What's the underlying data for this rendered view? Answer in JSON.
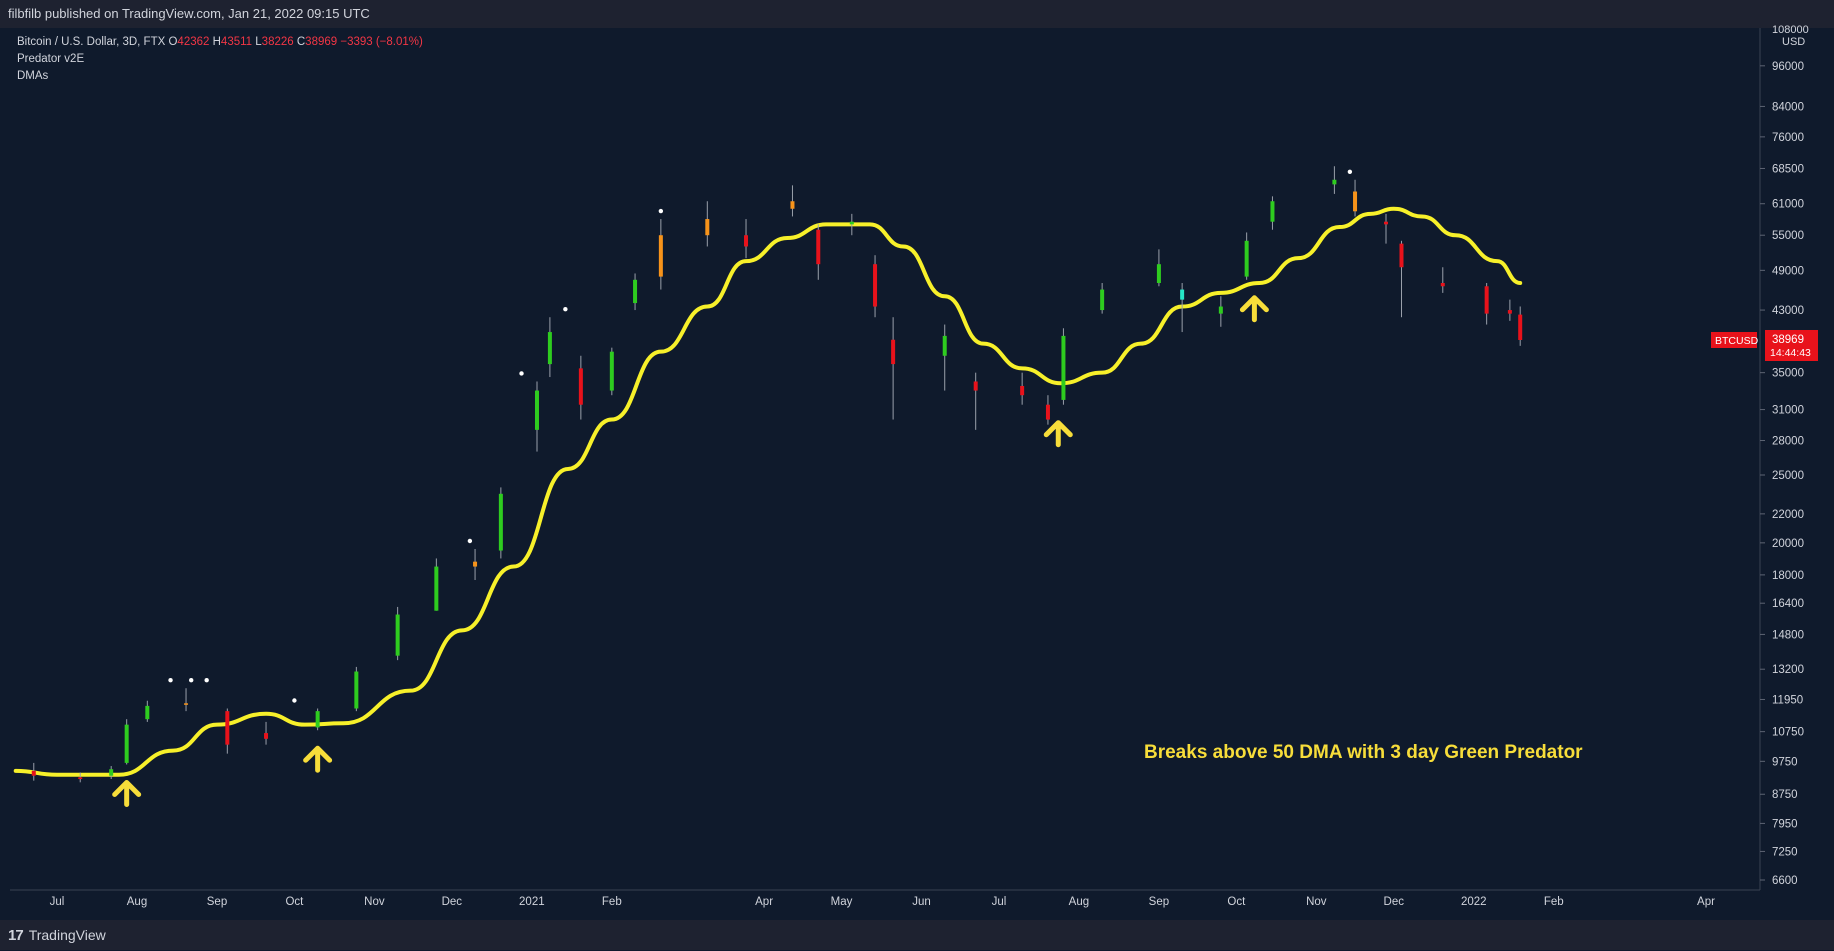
{
  "header": {
    "published_text": "filbfilb published on TradingView.com, Jan 21, 2022 09:15 UTC"
  },
  "legend": {
    "symbol_line": "Bitcoin / U.S. Dollar, 3D, FTX",
    "o_label": "O",
    "o_value": "42362",
    "h_label": "H",
    "h_value": "43511",
    "l_label": "L",
    "l_value": "38226",
    "c_label": "C",
    "c_value": "38969",
    "change": "−3393 (−8.01%)",
    "indicator_1": "Predator v2E",
    "indicator_2": "DMAs"
  },
  "annotation": "Breaks above 50 DMA with 3 day Green Predator",
  "price_scale": {
    "currency": "USD",
    "top_label": "108000",
    "ticks": [
      "96000",
      "84000",
      "76000",
      "68500",
      "61000",
      "55000",
      "49000",
      "43000",
      "35000",
      "31000",
      "28000",
      "25000",
      "22000",
      "20000",
      "18000",
      "16400",
      "14800",
      "13200",
      "11950",
      "10750",
      "9750",
      "8750",
      "7950",
      "7250",
      "6600"
    ]
  },
  "last_price": {
    "symbol": "BTCUSD",
    "price": "38969",
    "countdown": "14:44:43"
  },
  "time_axis": [
    "Jul",
    "Aug",
    "Sep",
    "Oct",
    "Nov",
    "Dec",
    "2021",
    "Feb",
    "Apr",
    "May",
    "Jun",
    "Jul",
    "Aug",
    "Sep",
    "Oct",
    "Nov",
    "Dec",
    "2022",
    "Feb",
    "Apr"
  ],
  "footer": {
    "brand": "TradingView",
    "logo_text": "17"
  },
  "colors": {
    "background": "#0f1a2c",
    "green": "#2ecc1f",
    "red": "#e8121b",
    "orange": "#f7931a",
    "cyan": "#26e6c8",
    "dma": "#f7f02a",
    "arrow": "#f7dd3a"
  },
  "chart_data": {
    "type": "candlestick",
    "scale": "log",
    "ylim": [
      6600,
      108000
    ],
    "series": [
      {
        "name": "BTCUSD",
        "kind": "candles",
        "points": [
          {
            "x": "2020-06-22",
            "o": 9300,
            "h": 9700,
            "l": 9150,
            "c": 9450,
            "color": "red"
          },
          {
            "x": "2020-07-10",
            "o": 9250,
            "h": 9400,
            "l": 9100,
            "c": 9200,
            "color": "red"
          },
          {
            "x": "2020-07-22",
            "o": 9300,
            "h": 9600,
            "l": 9200,
            "c": 9500,
            "color": "green"
          },
          {
            "x": "2020-07-28",
            "o": 9700,
            "h": 11200,
            "l": 9650,
            "c": 11000,
            "color": "green"
          },
          {
            "x": "2020-08-05",
            "o": 11200,
            "h": 11900,
            "l": 11100,
            "c": 11700,
            "color": "green"
          },
          {
            "x": "2020-08-20",
            "o": 11800,
            "h": 12400,
            "l": 11500,
            "c": 11750,
            "color": "orange"
          },
          {
            "x": "2020-09-05",
            "o": 11500,
            "h": 11600,
            "l": 10000,
            "c": 10300,
            "color": "red"
          },
          {
            "x": "2020-09-20",
            "o": 10500,
            "h": 11100,
            "l": 10300,
            "c": 10700,
            "color": "red"
          },
          {
            "x": "2020-10-10",
            "o": 10900,
            "h": 11600,
            "l": 10800,
            "c": 11500,
            "color": "green"
          },
          {
            "x": "2020-10-25",
            "o": 11600,
            "h": 13300,
            "l": 11500,
            "c": 13100,
            "color": "green"
          },
          {
            "x": "2020-11-10",
            "o": 13800,
            "h": 16200,
            "l": 13600,
            "c": 15800,
            "color": "green"
          },
          {
            "x": "2020-11-25",
            "o": 16000,
            "h": 19000,
            "l": 16000,
            "c": 18500,
            "color": "green"
          },
          {
            "x": "2020-12-10",
            "o": 18500,
            "h": 19600,
            "l": 17700,
            "c": 18800,
            "color": "orange"
          },
          {
            "x": "2020-12-20",
            "o": 19500,
            "h": 24000,
            "l": 19000,
            "c": 23500,
            "color": "green"
          },
          {
            "x": "2021-01-03",
            "o": 29000,
            "h": 34000,
            "l": 27000,
            "c": 33000,
            "color": "green"
          },
          {
            "x": "2021-01-08",
            "o": 36000,
            "h": 42000,
            "l": 34500,
            "c": 40000,
            "color": "green"
          },
          {
            "x": "2021-01-20",
            "o": 35500,
            "h": 37000,
            "l": 30000,
            "c": 31500,
            "color": "red"
          },
          {
            "x": "2021-02-01",
            "o": 33000,
            "h": 38000,
            "l": 32500,
            "c": 37500,
            "color": "green"
          },
          {
            "x": "2021-02-10",
            "o": 44000,
            "h": 48500,
            "l": 43000,
            "c": 47500,
            "color": "green"
          },
          {
            "x": "2021-02-20",
            "o": 55000,
            "h": 58000,
            "l": 46000,
            "c": 48000,
            "color": "orange"
          },
          {
            "x": "2021-03-10",
            "o": 55000,
            "h": 61500,
            "l": 53000,
            "c": 58000,
            "color": "orange"
          },
          {
            "x": "2021-03-25",
            "o": 55000,
            "h": 58000,
            "l": 51000,
            "c": 53000,
            "color": "red"
          },
          {
            "x": "2021-04-12",
            "o": 60000,
            "h": 64800,
            "l": 58500,
            "c": 61500,
            "color": "orange"
          },
          {
            "x": "2021-04-22",
            "o": 56000,
            "h": 57000,
            "l": 47500,
            "c": 50000,
            "color": "red"
          },
          {
            "x": "2021-05-05",
            "o": 57000,
            "h": 59000,
            "l": 55000,
            "c": 57500,
            "color": "green"
          },
          {
            "x": "2021-05-14",
            "o": 50000,
            "h": 51500,
            "l": 42000,
            "c": 43500,
            "color": "red"
          },
          {
            "x": "2021-05-21",
            "o": 39000,
            "h": 42000,
            "l": 30000,
            "c": 36000,
            "color": "red"
          },
          {
            "x": "2021-06-10",
            "o": 37000,
            "h": 41000,
            "l": 33000,
            "c": 39500,
            "color": "green"
          },
          {
            "x": "2021-06-22",
            "o": 34000,
            "h": 35000,
            "l": 29000,
            "c": 33000,
            "color": "red"
          },
          {
            "x": "2021-07-10",
            "o": 33500,
            "h": 35000,
            "l": 31500,
            "c": 32500,
            "color": "red"
          },
          {
            "x": "2021-07-20",
            "o": 31500,
            "h": 32500,
            "l": 29500,
            "c": 30000,
            "color": "red"
          },
          {
            "x": "2021-07-26",
            "o": 32000,
            "h": 40500,
            "l": 31500,
            "c": 39500,
            "color": "green"
          },
          {
            "x": "2021-08-10",
            "o": 43000,
            "h": 47000,
            "l": 42500,
            "c": 46000,
            "color": "green"
          },
          {
            "x": "2021-09-01",
            "o": 47000,
            "h": 52500,
            "l": 46500,
            "c": 50000,
            "color": "green"
          },
          {
            "x": "2021-09-10",
            "o": 46000,
            "h": 47000,
            "l": 40000,
            "c": 44500,
            "color": "cyan"
          },
          {
            "x": "2021-09-25",
            "o": 42500,
            "h": 45000,
            "l": 40700,
            "c": 43500,
            "color": "green"
          },
          {
            "x": "2021-10-05",
            "o": 48000,
            "h": 55500,
            "l": 47500,
            "c": 54000,
            "color": "green"
          },
          {
            "x": "2021-10-15",
            "o": 57500,
            "h": 62500,
            "l": 56000,
            "c": 61500,
            "color": "green"
          },
          {
            "x": "2021-11-08",
            "o": 66000,
            "h": 69000,
            "l": 63000,
            "c": 65000,
            "color": "green"
          },
          {
            "x": "2021-11-16",
            "o": 63500,
            "h": 66000,
            "l": 58500,
            "c": 59500,
            "color": "orange"
          },
          {
            "x": "2021-11-28",
            "o": 57500,
            "h": 59000,
            "l": 53500,
            "c": 57000,
            "color": "red"
          },
          {
            "x": "2021-12-04",
            "o": 53500,
            "h": 54000,
            "l": 42000,
            "c": 49500,
            "color": "red"
          },
          {
            "x": "2021-12-20",
            "o": 47000,
            "h": 49500,
            "l": 45500,
            "c": 46500,
            "color": "red"
          },
          {
            "x": "2022-01-06",
            "o": 46500,
            "h": 47000,
            "l": 41000,
            "c": 42500,
            "color": "red"
          },
          {
            "x": "2022-01-15",
            "o": 43000,
            "h": 44500,
            "l": 41500,
            "c": 42500,
            "color": "red"
          },
          {
            "x": "2022-01-19",
            "o": 42362,
            "h": 43511,
            "l": 38226,
            "c": 38969,
            "color": "red"
          }
        ]
      },
      {
        "name": "DMA",
        "kind": "line",
        "points": [
          {
            "x": "2020-06-15",
            "y": 9450
          },
          {
            "x": "2020-07-01",
            "y": 9330
          },
          {
            "x": "2020-07-25",
            "y": 9330
          },
          {
            "x": "2020-08-15",
            "y": 10100
          },
          {
            "x": "2020-09-01",
            "y": 11000
          },
          {
            "x": "2020-09-20",
            "y": 11400
          },
          {
            "x": "2020-10-05",
            "y": 11000
          },
          {
            "x": "2020-10-20",
            "y": 11050
          },
          {
            "x": "2020-11-15",
            "y": 12300
          },
          {
            "x": "2020-12-05",
            "y": 15000
          },
          {
            "x": "2020-12-25",
            "y": 18500
          },
          {
            "x": "2021-01-15",
            "y": 25500
          },
          {
            "x": "2021-02-01",
            "y": 30000
          },
          {
            "x": "2021-02-20",
            "y": 37500
          },
          {
            "x": "2021-03-10",
            "y": 43500
          },
          {
            "x": "2021-03-25",
            "y": 50500
          },
          {
            "x": "2021-04-10",
            "y": 54500
          },
          {
            "x": "2021-04-25",
            "y": 57000
          },
          {
            "x": "2021-05-12",
            "y": 57000
          },
          {
            "x": "2021-05-25",
            "y": 53000
          },
          {
            "x": "2021-06-10",
            "y": 45000
          },
          {
            "x": "2021-06-25",
            "y": 38500
          },
          {
            "x": "2021-07-10",
            "y": 35500
          },
          {
            "x": "2021-07-25",
            "y": 33800
          },
          {
            "x": "2021-08-10",
            "y": 35000
          },
          {
            "x": "2021-08-25",
            "y": 38500
          },
          {
            "x": "2021-09-10",
            "y": 43500
          },
          {
            "x": "2021-09-25",
            "y": 45500
          },
          {
            "x": "2021-10-10",
            "y": 47000
          },
          {
            "x": "2021-10-25",
            "y": 51000
          },
          {
            "x": "2021-11-10",
            "y": 56500
          },
          {
            "x": "2021-11-22",
            "y": 59000
          },
          {
            "x": "2021-12-01",
            "y": 60000
          },
          {
            "x": "2021-12-12",
            "y": 58500
          },
          {
            "x": "2021-12-25",
            "y": 55000
          },
          {
            "x": "2022-01-10",
            "y": 50500
          },
          {
            "x": "2022-01-19",
            "y": 47000
          }
        ]
      }
    ],
    "signal_dots_dates": [
      "2020-08-14",
      "2020-08-22",
      "2020-08-28",
      "2020-10-01",
      "2020-12-08",
      "2020-12-28",
      "2021-01-14",
      "2021-02-20",
      "2021-11-14"
    ],
    "arrows_dates": [
      "2020-07-28",
      "2020-10-10",
      "2021-07-24",
      "2021-10-08"
    ]
  }
}
